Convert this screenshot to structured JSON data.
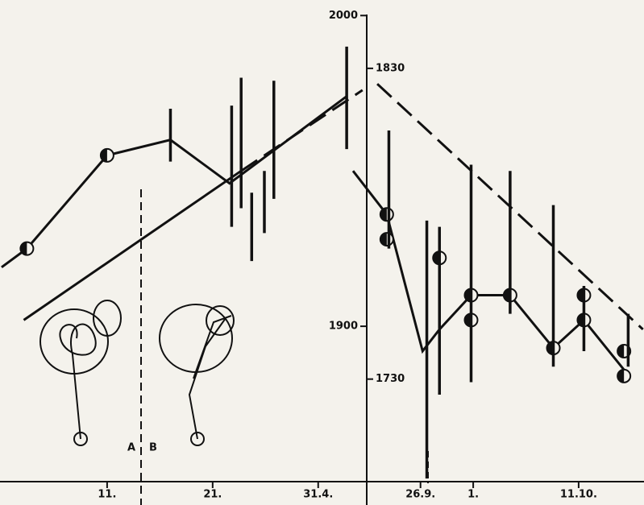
{
  "chart_data": [
    {
      "type": "line",
      "yaxis_side": "left",
      "xlim": [
        0.85,
        35.6
      ],
      "ylim": [
        1850,
        2005
      ],
      "xticks": [
        {
          "value": 11,
          "label": "11."
        },
        {
          "value": 21,
          "label": "21."
        },
        {
          "value": 31,
          "label": "31.4."
        }
      ],
      "yticks": [
        2000,
        1900
      ],
      "annotations": [
        "A",
        "B"
      ],
      "series": [
        {
          "style": "solid",
          "x": [
            1,
            3.4,
            11,
            17,
            22.6,
            33.7
          ],
          "values": [
            1919,
            1925,
            1955,
            1960,
            1946,
            1974
          ]
        },
        {
          "style": "solid",
          "x": [
            3.1,
            23.7
          ],
          "values": [
            1902,
            1950
          ]
        },
        {
          "style": "dashed",
          "x": [
            23.7,
            35.2
          ],
          "values": [
            1950,
            1976
          ]
        },
        {
          "style": "points",
          "x": [
            3.4,
            11
          ],
          "values": [
            1925,
            1955
          ]
        },
        {
          "style": "range",
          "x": [
            17,
            22.8,
            23.7,
            24.7,
            25.9,
            26.8,
            33.7
          ],
          "low": [
            1953,
            1932,
            1938,
            1921,
            1930,
            1941,
            1957
          ],
          "high": [
            1970,
            1971,
            1980,
            1943,
            1950,
            1979,
            1990
          ]
        }
      ]
    },
    {
      "type": "line",
      "yaxis_side": "right",
      "xlim": [
        20.9,
        47.2
      ],
      "ylim": [
        1697,
        1852
      ],
      "xticks": [
        {
          "value": 26,
          "label": "26.9."
        },
        {
          "value": 31,
          "label": "1."
        },
        {
          "value": 41,
          "label": "11.10."
        }
      ],
      "yticks": [
        1830,
        1730
      ],
      "series": [
        {
          "style": "solid",
          "x": [
            19.6,
            22.8,
            26.2,
            27.8,
            30.8,
            34.5,
            38.6,
            41.5,
            45.3
          ],
          "values": [
            1797,
            1783,
            1739,
            1746,
            1757,
            1757,
            1740,
            1749,
            1733
          ]
        },
        {
          "style": "dashed",
          "x": [
            21.9,
            47.1
          ],
          "values": [
            1825,
            1746
          ]
        },
        {
          "style": "points",
          "x": [
            22.8,
            22.8,
            27.8,
            30.8,
            30.8,
            34.5,
            38.6,
            41.5,
            41.5,
            45.3,
            45.3
          ],
          "values": [
            1783,
            1775,
            1769,
            1757,
            1749,
            1757,
            1740,
            1757,
            1749,
            1739,
            1731
          ]
        },
        {
          "style": "range",
          "x": [
            23.0,
            26.6,
            27.8,
            30.8,
            34.5,
            38.6,
            41.5,
            45.7
          ],
          "low": [
            1772,
            1698,
            1725,
            1729,
            1751,
            1734,
            1739,
            1734
          ],
          "high": [
            1810,
            1781,
            1779,
            1799,
            1797,
            1786,
            1760,
            1751
          ]
        }
      ]
    }
  ]
}
